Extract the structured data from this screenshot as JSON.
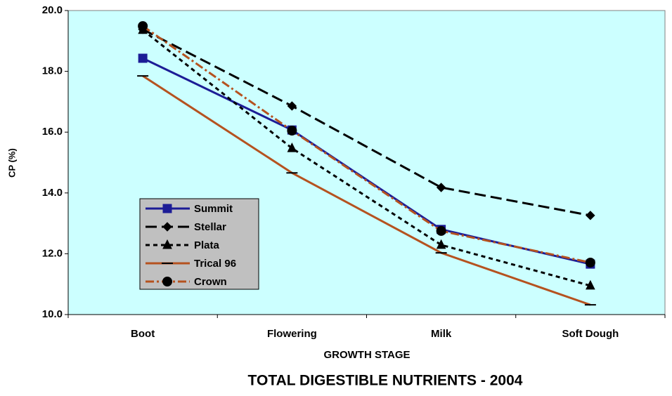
{
  "chart_data": {
    "type": "line",
    "title": "TOTAL DIGESTIBLE NUTRIENTS - 2004",
    "x_label": "GROWTH STAGE",
    "y_label": "CP (%)",
    "categories": [
      "Boot",
      "Flowering",
      "Milk",
      "Soft Dough"
    ],
    "ylim": [
      10,
      20
    ],
    "yticks": [
      {
        "value": 10,
        "label": "10.0"
      },
      {
        "value": 12,
        "label": "12.0"
      },
      {
        "value": 14,
        "label": "14.0"
      },
      {
        "value": 16,
        "label": "16.0"
      },
      {
        "value": 18,
        "label": "18.0"
      },
      {
        "value": 20,
        "label": "20.0"
      }
    ],
    "background": "#ccffff",
    "series": [
      {
        "name": "Summit",
        "color": "#1c1c96",
        "marker_color": "#1c1c96",
        "marker": "square",
        "dash": "solid",
        "values": [
          18.43,
          16.07,
          12.8,
          11.66
        ]
      },
      {
        "name": "Stellar",
        "color": "#000000",
        "marker_color": "#000000",
        "marker": "diamond",
        "dash": "long",
        "values": [
          19.38,
          16.86,
          14.18,
          13.26
        ]
      },
      {
        "name": "Plata",
        "color": "#000000",
        "marker_color": "#000000",
        "marker": "triangle",
        "dash": "short",
        "values": [
          19.36,
          15.47,
          12.29,
          10.95
        ]
      },
      {
        "name": "Trical 96",
        "color": "#b5521f",
        "marker_color": "#000000",
        "marker": "dash",
        "dash": "solid",
        "values": [
          17.85,
          14.66,
          12.03,
          10.32
        ]
      },
      {
        "name": "Crown",
        "color": "#b5521f",
        "marker_color": "#000000",
        "marker": "circle",
        "dash": "dashdot",
        "values": [
          19.49,
          16.05,
          12.75,
          11.71
        ]
      }
    ]
  }
}
